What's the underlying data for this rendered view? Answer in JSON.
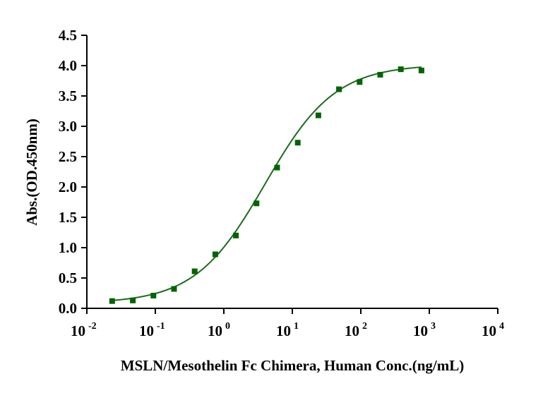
{
  "chart_data": {
    "type": "scatter",
    "xlabel": "MSLN/Mesothelin Fc Chimera, Human Conc.(ng/mL)",
    "ylabel": "Abs.(OD.450nm)",
    "xscale": "log",
    "xlim": [
      0.01,
      10000
    ],
    "ylim": [
      0,
      4.5
    ],
    "x_ticks": [
      {
        "base": "10",
        "exp": "-2",
        "value": 0.01
      },
      {
        "base": "10",
        "exp": "-1",
        "value": 0.1
      },
      {
        "base": "10",
        "exp": "0",
        "value": 1
      },
      {
        "base": "10",
        "exp": "1",
        "value": 10
      },
      {
        "base": "10",
        "exp": "2",
        "value": 100
      },
      {
        "base": "10",
        "exp": "3",
        "value": 1000
      },
      {
        "base": "10",
        "exp": "4",
        "value": 10000
      }
    ],
    "y_ticks": [
      "0.0",
      "0.5",
      "1.0",
      "1.5",
      "2.0",
      "2.5",
      "3.0",
      "3.5",
      "4.0",
      "4.5"
    ],
    "grid": false,
    "legend": "none",
    "marker_color": "#006400",
    "line_color": "#1a6b1a",
    "series": [
      {
        "x": [
          0.0234,
          0.0469,
          0.0938,
          0.1875,
          0.375,
          0.75,
          1.5,
          3,
          6,
          12,
          24,
          48,
          96,
          192,
          384,
          768
        ],
        "y": [
          0.12,
          0.13,
          0.21,
          0.32,
          0.61,
          0.89,
          1.2,
          1.73,
          2.32,
          2.73,
          3.18,
          3.61,
          3.73,
          3.85,
          3.94,
          3.92
        ]
      }
    ],
    "fit": {
      "model": "4PL",
      "bottom": 0.08,
      "top": 4.02,
      "ec50": 4.0,
      "hill": 0.85
    }
  }
}
